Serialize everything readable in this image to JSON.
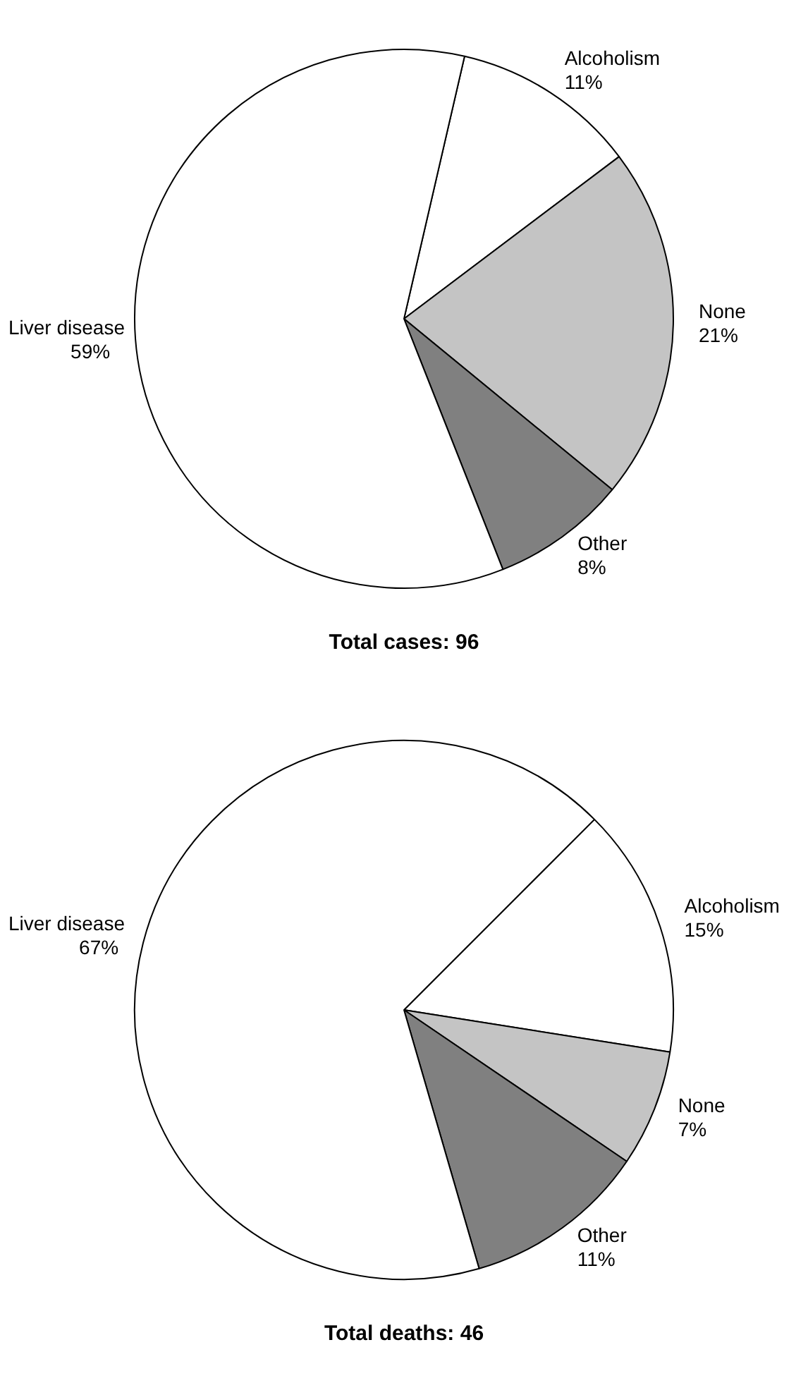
{
  "chart_data": [
    {
      "type": "pie",
      "title": "Total cases: 96",
      "categories": [
        "Alcoholism",
        "None",
        "Other",
        "Liver disease"
      ],
      "values": [
        11,
        21,
        8,
        59
      ],
      "colors": [
        "#ffffff",
        "#c4c4c4",
        "#808080",
        "#ffffff"
      ],
      "value_labels": [
        "11%",
        "21%",
        "8%",
        "59%"
      ],
      "legend": false
    },
    {
      "type": "pie",
      "title": "Total deaths: 46",
      "categories": [
        "Alcoholism",
        "None",
        "Other",
        "Liver disease"
      ],
      "values": [
        15,
        7,
        11,
        67
      ],
      "colors": [
        "#ffffff",
        "#c4c4c4",
        "#808080",
        "#ffffff"
      ],
      "value_labels": [
        "15%",
        "7%",
        "11%",
        "67%"
      ],
      "legend": false
    }
  ]
}
